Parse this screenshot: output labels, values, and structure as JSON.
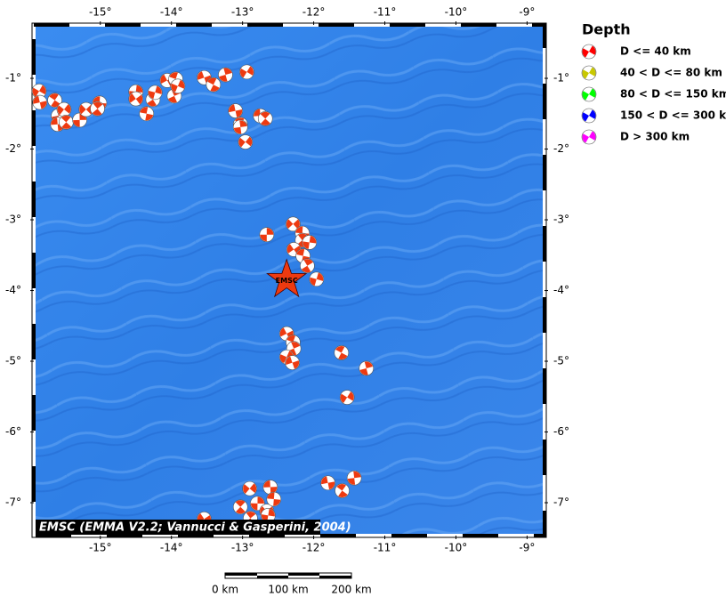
{
  "map": {
    "xlim": [
      -15.91,
      -8.78
    ],
    "ylim": [
      -7.44,
      -0.27
    ],
    "lonticks": [
      {
        "value": -15,
        "label": "-15°"
      },
      {
        "value": -14,
        "label": "-14°"
      },
      {
        "value": -13,
        "label": "-13°"
      },
      {
        "value": -12,
        "label": "-12°"
      },
      {
        "value": -11,
        "label": "-11°"
      },
      {
        "value": -10,
        "label": "-10°"
      },
      {
        "value": -9,
        "label": "-9°"
      }
    ],
    "latticks": [
      {
        "value": -1,
        "label": "-1°"
      },
      {
        "value": -2,
        "label": "-2°"
      },
      {
        "value": -3,
        "label": "-3°"
      },
      {
        "value": -4,
        "label": "-4°"
      },
      {
        "value": -5,
        "label": "-5°"
      },
      {
        "value": -6,
        "label": "-6°"
      },
      {
        "value": -7,
        "label": "-7°"
      }
    ],
    "events": [
      [
        -15.86,
        -1.18
      ],
      [
        -15.85,
        -1.34
      ],
      [
        -15.64,
        -1.31
      ],
      [
        -15.59,
        -1.53
      ],
      [
        -15.51,
        -1.44
      ],
      [
        -15.6,
        -1.65
      ],
      [
        -15.48,
        -1.62
      ],
      [
        -15.29,
        -1.59
      ],
      [
        -15.2,
        -1.44
      ],
      [
        -15.01,
        -1.35
      ],
      [
        -15.04,
        -1.43
      ],
      [
        -14.5,
        -1.19
      ],
      [
        -14.5,
        -1.29
      ],
      [
        -14.35,
        -1.5
      ],
      [
        -14.26,
        -1.3
      ],
      [
        -14.23,
        -1.2
      ],
      [
        -14.06,
        -1.03
      ],
      [
        -13.94,
        -1.01
      ],
      [
        -13.96,
        -1.25
      ],
      [
        -13.91,
        -1.11
      ],
      [
        -13.54,
        -0.99
      ],
      [
        -13.41,
        -1.09
      ],
      [
        -13.24,
        -0.95
      ],
      [
        -12.94,
        -0.91
      ],
      [
        -13.1,
        -1.46
      ],
      [
        -13.03,
        -1.65
      ],
      [
        -13.03,
        -1.69
      ],
      [
        -12.96,
        -1.9
      ],
      [
        -12.75,
        -1.53
      ],
      [
        -12.68,
        -1.57
      ],
      [
        -12.66,
        -3.21
      ],
      [
        -12.29,
        -3.06
      ],
      [
        -12.16,
        -3.19
      ],
      [
        -12.16,
        -3.29
      ],
      [
        -12.06,
        -3.32
      ],
      [
        -12.28,
        -3.42
      ],
      [
        -12.15,
        -3.51
      ],
      [
        -12.09,
        -3.65
      ],
      [
        -11.96,
        -3.84
      ],
      [
        -12.38,
        -4.61
      ],
      [
        -12.29,
        -4.73
      ],
      [
        -12.28,
        -4.82
      ],
      [
        -12.38,
        -4.94
      ],
      [
        -12.3,
        -5.02
      ],
      [
        -11.61,
        -4.88
      ],
      [
        -11.26,
        -5.1
      ],
      [
        -11.53,
        -5.51
      ],
      [
        -11.8,
        -6.72
      ],
      [
        -11.6,
        -6.83
      ],
      [
        -11.43,
        -6.65
      ],
      [
        -12.9,
        -6.8
      ],
      [
        -12.61,
        -6.78
      ],
      [
        -13.03,
        -7.06
      ],
      [
        -12.79,
        -7.01
      ],
      [
        -12.66,
        -7.12
      ],
      [
        -12.56,
        -6.95
      ],
      [
        -12.89,
        -7.22
      ],
      [
        -12.64,
        -7.18
      ],
      [
        -13.54,
        -7.23
      ]
    ],
    "event_color": "#ee3a10",
    "epicenter": {
      "lon": -12.38,
      "lat": -3.85,
      "label": "EMSC",
      "color": "#ee3a10"
    },
    "credit": "EMSC (EMMA V2.2; Vannucci & Gasperini, 2004)"
  },
  "legend": {
    "title": "Depth",
    "items": [
      {
        "label": "D <= 40 km",
        "color": "#ff0000"
      },
      {
        "label": "40 < D <= 80 km",
        "color": "#c8c800"
      },
      {
        "label": "80 < D <= 150 km",
        "color": "#00ff00"
      },
      {
        "label": "150 < D <= 300 km",
        "color": "#0000ff"
      },
      {
        "label": "D > 300 km",
        "color": "#ff00ff"
      }
    ]
  },
  "scale_bar": {
    "labels": [
      "0 km",
      "100 km",
      "200 km"
    ]
  }
}
